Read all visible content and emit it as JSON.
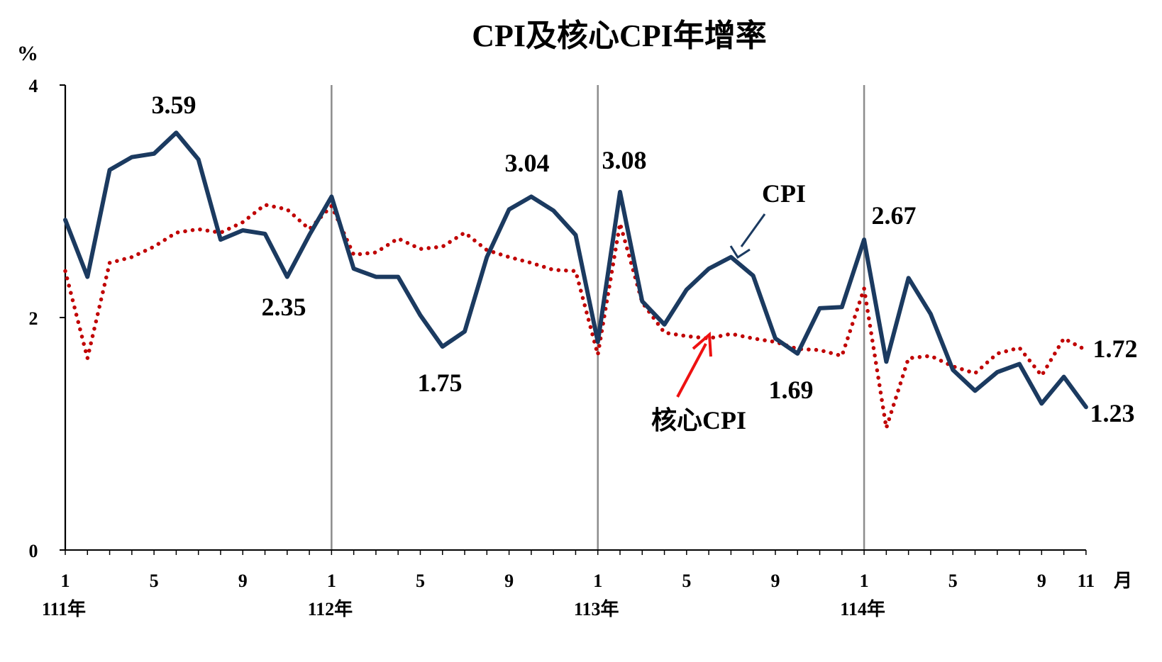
{
  "title": "CPI及核心CPI年增率",
  "unit_label": "%",
  "month_unit": "月",
  "colors": {
    "cpi": "#1b3a60",
    "core": "#c00000",
    "core_label": "#ee1111",
    "arrow_cpi": "#1b3a60",
    "arrow_core": "#ee1111",
    "year_lines": "#8c8c8c",
    "axis": "#000000"
  },
  "chart_data": {
    "type": "line",
    "title": "CPI及核心CPI年增率",
    "ylabel": "%",
    "xlabel": "月",
    "ylim": [
      0,
      4
    ],
    "yticks": [
      0,
      2,
      4
    ],
    "grid": false,
    "x_ticks": [
      "1",
      "5",
      "9",
      "1",
      "5",
      "9",
      "1",
      "5",
      "9",
      "1",
      "5",
      "9",
      "11"
    ],
    "year_labels": [
      "111年",
      "112年",
      "113年",
      "114年"
    ],
    "series": [
      {
        "name": "CPI",
        "style": "solid",
        "values": [
          2.84,
          2.35,
          3.27,
          3.38,
          3.41,
          3.59,
          3.36,
          2.67,
          2.75,
          2.72,
          2.35,
          2.71,
          3.04,
          2.42,
          2.35,
          2.35,
          2.02,
          1.75,
          1.88,
          2.52,
          2.93,
          3.04,
          2.92,
          2.71,
          1.79,
          3.08,
          2.14,
          1.94,
          2.24,
          2.42,
          2.52,
          2.36,
          1.82,
          1.69,
          2.08,
          2.09,
          2.67,
          1.62,
          2.34,
          2.03,
          1.55,
          1.37,
          1.53,
          1.6,
          1.26,
          1.49,
          1.23
        ]
      },
      {
        "name": "核心CPI",
        "style": "dotted",
        "values": [
          2.4,
          1.65,
          2.47,
          2.52,
          2.61,
          2.73,
          2.76,
          2.73,
          2.82,
          2.97,
          2.93,
          2.76,
          2.96,
          2.54,
          2.56,
          2.68,
          2.59,
          2.61,
          2.73,
          2.58,
          2.52,
          2.47,
          2.41,
          2.4,
          1.68,
          2.81,
          2.13,
          1.87,
          1.84,
          1.82,
          1.86,
          1.82,
          1.79,
          1.73,
          1.72,
          1.67,
          2.25,
          1.05,
          1.65,
          1.67,
          1.58,
          1.52,
          1.69,
          1.74,
          1.5,
          1.82,
          1.72
        ]
      }
    ],
    "annotations": [
      {
        "text": "3.59"
      },
      {
        "text": "2.35"
      },
      {
        "text": "3.04"
      },
      {
        "text": "1.75"
      },
      {
        "text": "3.08"
      },
      {
        "text": "2.67"
      },
      {
        "text": "1.69"
      },
      {
        "text": "1.23"
      },
      {
        "text": "1.72"
      }
    ],
    "series_labels": [
      "CPI",
      "核心CPI"
    ]
  }
}
